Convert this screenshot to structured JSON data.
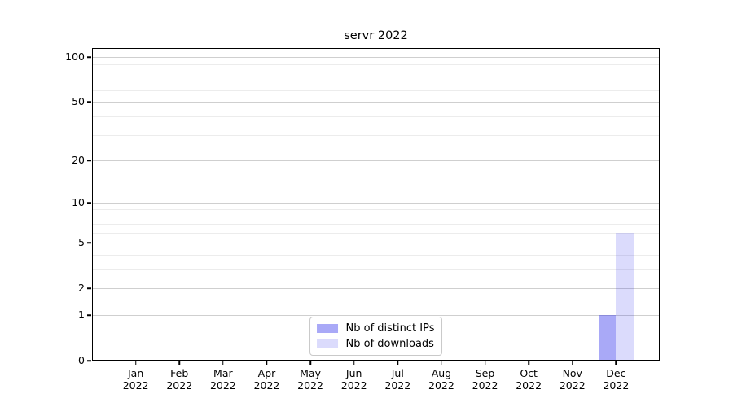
{
  "chart_data": {
    "type": "bar",
    "title": "servr 2022",
    "x": [
      "Jan",
      "Feb",
      "Mar",
      "Apr",
      "May",
      "Jun",
      "Jul",
      "Aug",
      "Sep",
      "Oct",
      "Nov",
      "Dec"
    ],
    "year": "2022",
    "series": [
      {
        "name": "Nb of distinct IPs",
        "color": "rgba(30,30,235,0.38)",
        "values": [
          0,
          0,
          0,
          0,
          0,
          0,
          0,
          0,
          0,
          0,
          0,
          1
        ]
      },
      {
        "name": "Nb of downloads",
        "color": "rgba(30,30,235,0.16)",
        "values": [
          0,
          0,
          0,
          0,
          0,
          0,
          0,
          0,
          0,
          0,
          0,
          6
        ]
      }
    ],
    "yaxis": {
      "scale": "log1p",
      "ticks": [
        0,
        1,
        2,
        5,
        10,
        20,
        50,
        100
      ],
      "minor_gridlines": [
        3,
        4,
        6,
        7,
        8,
        9,
        30,
        40,
        60,
        70,
        80,
        90
      ],
      "range": [
        0,
        115
      ]
    },
    "xlabel": "",
    "ylabel": "",
    "grid": {
      "major_color": "#cfcfcf",
      "minor_color": "#ececec"
    },
    "legend": {
      "position": "bottom-center"
    },
    "bar_width": 21.5
  }
}
